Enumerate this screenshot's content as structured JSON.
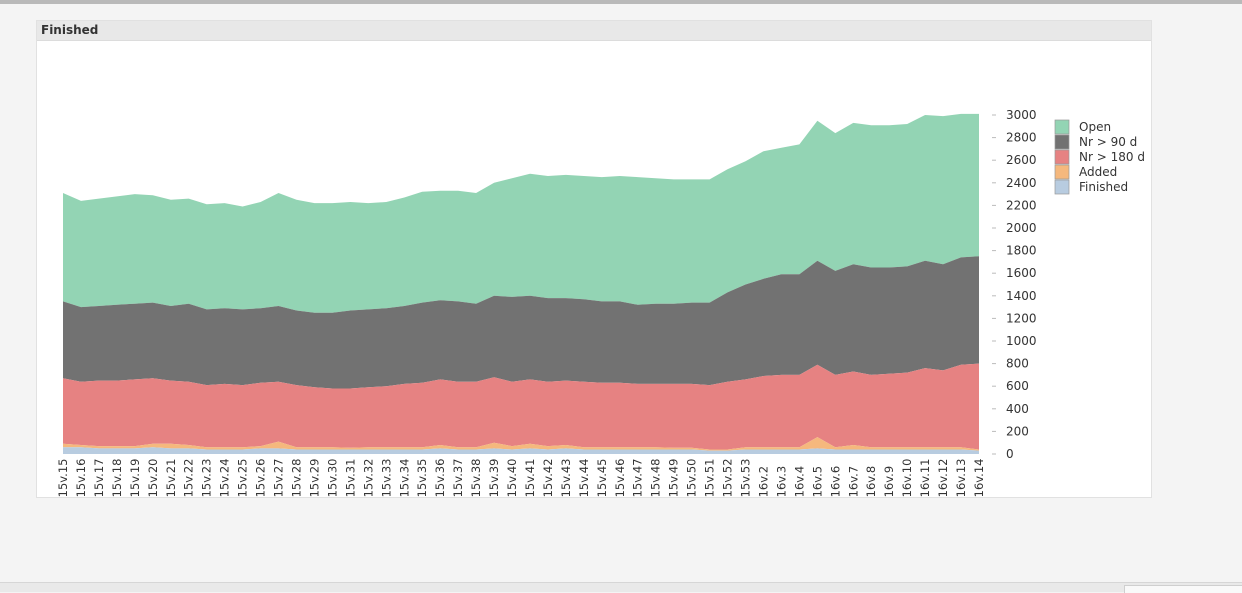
{
  "panel": {
    "title": "Finished"
  },
  "chart_data": {
    "type": "area",
    "stacked": true,
    "title": "Finished",
    "ylim": [
      0,
      3000
    ],
    "yticks": [
      0,
      200,
      400,
      600,
      800,
      1000,
      1200,
      1400,
      1600,
      1800,
      2000,
      2200,
      2400,
      2600,
      2800,
      3000
    ],
    "y_axis_position": "right",
    "legend_position": "right",
    "categories": [
      "2015v.15",
      "2015v.16",
      "2015v.17",
      "2015v.18",
      "2015v.19",
      "2015v.20",
      "2015v.21",
      "2015v.22",
      "2015v.23",
      "2015v.24",
      "2015v.25",
      "2015v.26",
      "2015v.27",
      "2015v.28",
      "2015v.29",
      "2015v.30",
      "2015v.31",
      "2015v.32",
      "2015v.33",
      "2015v.34",
      "2015v.35",
      "2015v.36",
      "2015v.37",
      "2015v.38",
      "2015v.39",
      "2015v.40",
      "2015v.41",
      "2015v.42",
      "2015v.43",
      "2015v.44",
      "2015v.45",
      "2015v.46",
      "2015v.47",
      "2015v.48",
      "2015v.49",
      "2015v.50",
      "2015v.51",
      "2015v.52",
      "2015v.53",
      "2016v.2",
      "2016v.3",
      "2016v.4",
      "2016v.5",
      "2016v.6",
      "2016v.7",
      "2016v.8",
      "2016v.9",
      "2016v.10",
      "2016v.11",
      "2016v.12",
      "2016v.13",
      "2016v.14"
    ],
    "series": [
      {
        "name": "Open",
        "color": "#93d4b4",
        "totals": [
          2310,
          2240,
          2260,
          2280,
          2300,
          2290,
          2250,
          2260,
          2210,
          2220,
          2190,
          2230,
          2310,
          2250,
          2220,
          2220,
          2230,
          2220,
          2230,
          2270,
          2320,
          2330,
          2330,
          2310,
          2400,
          2440,
          2480,
          2460,
          2470,
          2460,
          2450,
          2460,
          2450,
          2440,
          2430,
          2430,
          2430,
          2520,
          2590,
          2680,
          2710,
          2740,
          2950,
          2840,
          2930,
          2910,
          2910,
          2920,
          3000,
          2990,
          3010,
          3010
        ]
      },
      {
        "name": "Nr > 90 d",
        "color": "#727272",
        "totals": [
          1350,
          1300,
          1310,
          1320,
          1330,
          1340,
          1310,
          1330,
          1280,
          1290,
          1280,
          1290,
          1310,
          1270,
          1250,
          1250,
          1270,
          1280,
          1290,
          1310,
          1340,
          1360,
          1350,
          1330,
          1400,
          1390,
          1400,
          1380,
          1380,
          1370,
          1350,
          1350,
          1320,
          1330,
          1330,
          1340,
          1340,
          1430,
          1500,
          1550,
          1590,
          1590,
          1710,
          1620,
          1680,
          1650,
          1650,
          1660,
          1710,
          1680,
          1740,
          1750
        ]
      },
      {
        "name": "Nr > 180 d",
        "color": "#e68282",
        "totals": [
          670,
          640,
          650,
          650,
          660,
          670,
          650,
          640,
          610,
          620,
          610,
          630,
          640,
          610,
          590,
          580,
          580,
          590,
          600,
          620,
          630,
          660,
          640,
          640,
          680,
          640,
          660,
          640,
          650,
          640,
          630,
          630,
          620,
          620,
          620,
          620,
          610,
          640,
          660,
          690,
          700,
          700,
          790,
          700,
          730,
          700,
          710,
          720,
          760,
          740,
          790,
          800
        ]
      },
      {
        "name": "Added",
        "color": "#f5b87d",
        "values": [
          30,
          20,
          20,
          20,
          20,
          30,
          40,
          30,
          20,
          20,
          20,
          20,
          60,
          20,
          20,
          20,
          15,
          20,
          20,
          20,
          20,
          30,
          20,
          20,
          50,
          30,
          40,
          30,
          30,
          20,
          20,
          20,
          20,
          20,
          15,
          15,
          10,
          10,
          20,
          20,
          20,
          20,
          100,
          20,
          40,
          20,
          20,
          20,
          20,
          20,
          20,
          10
        ]
      },
      {
        "name": "Finished",
        "color": "#b8cce0",
        "values": [
          60,
          60,
          50,
          50,
          50,
          60,
          50,
          50,
          40,
          40,
          40,
          50,
          50,
          40,
          40,
          40,
          40,
          40,
          40,
          40,
          40,
          50,
          40,
          40,
          50,
          40,
          50,
          40,
          50,
          40,
          40,
          40,
          40,
          40,
          40,
          40,
          30,
          30,
          40,
          40,
          40,
          40,
          50,
          40,
          40,
          40,
          40,
          40,
          40,
          40,
          40,
          30
        ]
      }
    ]
  }
}
